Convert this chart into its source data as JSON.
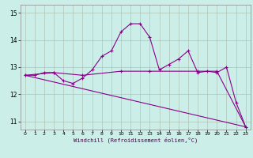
{
  "title": "",
  "xlabel": "Windchill (Refroidissement éolien,°C)",
  "ylabel": "",
  "background_color": "#cceee8",
  "line_color": "#880088",
  "grid_color": "#aabbaa",
  "xlim": [
    -0.5,
    23.5
  ],
  "ylim": [
    10.7,
    15.3
  ],
  "xticks": [
    0,
    1,
    2,
    3,
    4,
    5,
    6,
    7,
    8,
    9,
    10,
    11,
    12,
    13,
    14,
    15,
    16,
    17,
    18,
    19,
    20,
    21,
    22,
    23
  ],
  "yticks": [
    11,
    12,
    13,
    14,
    15
  ],
  "series1_x": [
    0,
    1,
    2,
    3,
    4,
    5,
    6,
    7,
    8,
    9,
    10,
    11,
    12,
    13,
    14,
    15,
    16,
    17,
    18,
    19,
    20,
    21,
    22,
    23
  ],
  "series1_y": [
    12.7,
    12.7,
    12.8,
    12.8,
    12.5,
    12.4,
    12.6,
    12.9,
    13.4,
    13.6,
    14.3,
    14.6,
    14.6,
    14.1,
    12.9,
    13.1,
    13.3,
    13.6,
    12.8,
    12.85,
    12.8,
    13.0,
    11.7,
    10.8
  ],
  "series2_x": [
    0,
    3,
    6,
    10,
    13,
    18,
    20,
    23
  ],
  "series2_y": [
    12.7,
    12.8,
    12.7,
    12.85,
    12.85,
    12.85,
    12.85,
    10.8
  ],
  "series3_x": [
    0,
    23
  ],
  "series3_y": [
    12.7,
    10.8
  ]
}
